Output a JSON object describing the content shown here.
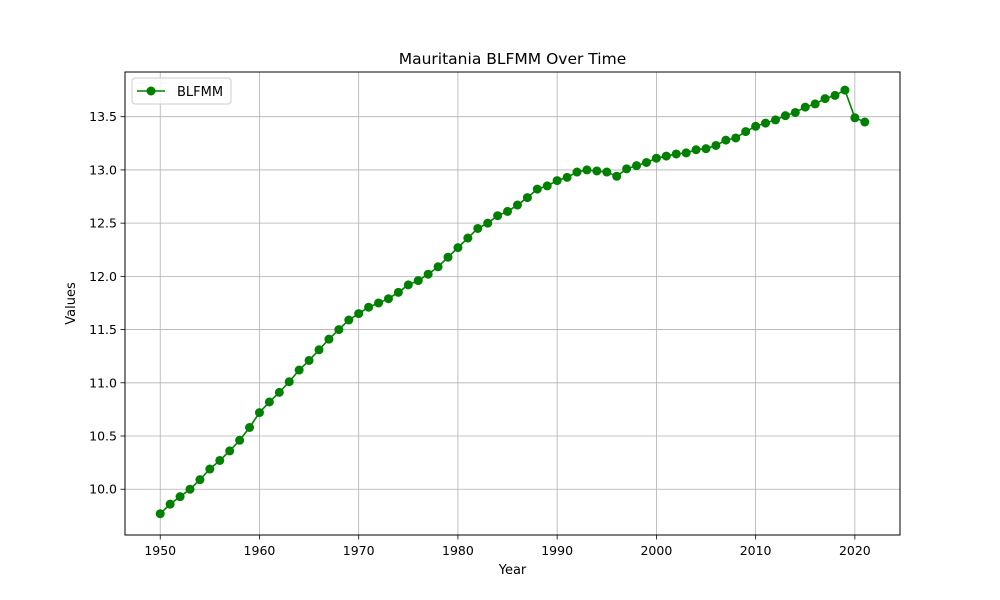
{
  "chart_data": {
    "type": "line",
    "title": "Mauritania BLFMM Over Time",
    "xlabel": "Year",
    "ylabel": "Values",
    "xlim": [
      1946.45,
      2024.55
    ],
    "ylim": [
      9.57,
      13.92
    ],
    "x_ticks": [
      1950,
      1960,
      1970,
      1980,
      1990,
      2000,
      2010,
      2020
    ],
    "y_ticks": [
      10.0,
      10.5,
      11.0,
      11.5,
      12.0,
      12.5,
      13.0,
      13.5
    ],
    "grid": true,
    "legend": {
      "position": "top-left"
    },
    "series": [
      {
        "name": "BLFMM",
        "color": "#008000",
        "marker": "circle",
        "x": [
          1950,
          1951,
          1952,
          1953,
          1954,
          1955,
          1956,
          1957,
          1958,
          1959,
          1960,
          1961,
          1962,
          1963,
          1964,
          1965,
          1966,
          1967,
          1968,
          1969,
          1970,
          1971,
          1972,
          1973,
          1974,
          1975,
          1976,
          1977,
          1978,
          1979,
          1980,
          1981,
          1982,
          1983,
          1984,
          1985,
          1986,
          1987,
          1988,
          1989,
          1990,
          1991,
          1992,
          1993,
          1994,
          1995,
          1996,
          1997,
          1998,
          1999,
          2000,
          2001,
          2002,
          2003,
          2004,
          2005,
          2006,
          2007,
          2008,
          2009,
          2010,
          2011,
          2012,
          2013,
          2014,
          2015,
          2016,
          2017,
          2018,
          2019,
          2020,
          2021
        ],
        "values": [
          9.77,
          9.86,
          9.93,
          10.0,
          10.09,
          10.19,
          10.27,
          10.36,
          10.46,
          10.58,
          10.72,
          10.82,
          10.91,
          11.01,
          11.12,
          11.21,
          11.31,
          11.41,
          11.5,
          11.59,
          11.65,
          11.71,
          11.75,
          11.79,
          11.85,
          11.92,
          11.96,
          12.02,
          12.09,
          12.18,
          12.27,
          12.36,
          12.45,
          12.5,
          12.57,
          12.61,
          12.67,
          12.74,
          12.82,
          12.85,
          12.9,
          12.93,
          12.98,
          13.0,
          12.99,
          12.98,
          12.94,
          13.01,
          13.04,
          13.07,
          13.11,
          13.13,
          13.15,
          13.16,
          13.19,
          13.2,
          13.23,
          13.28,
          13.3,
          13.36,
          13.41,
          13.44,
          13.47,
          13.51,
          13.54,
          13.59,
          13.62,
          13.67,
          13.7,
          13.75,
          13.49,
          13.45
        ]
      }
    ]
  }
}
